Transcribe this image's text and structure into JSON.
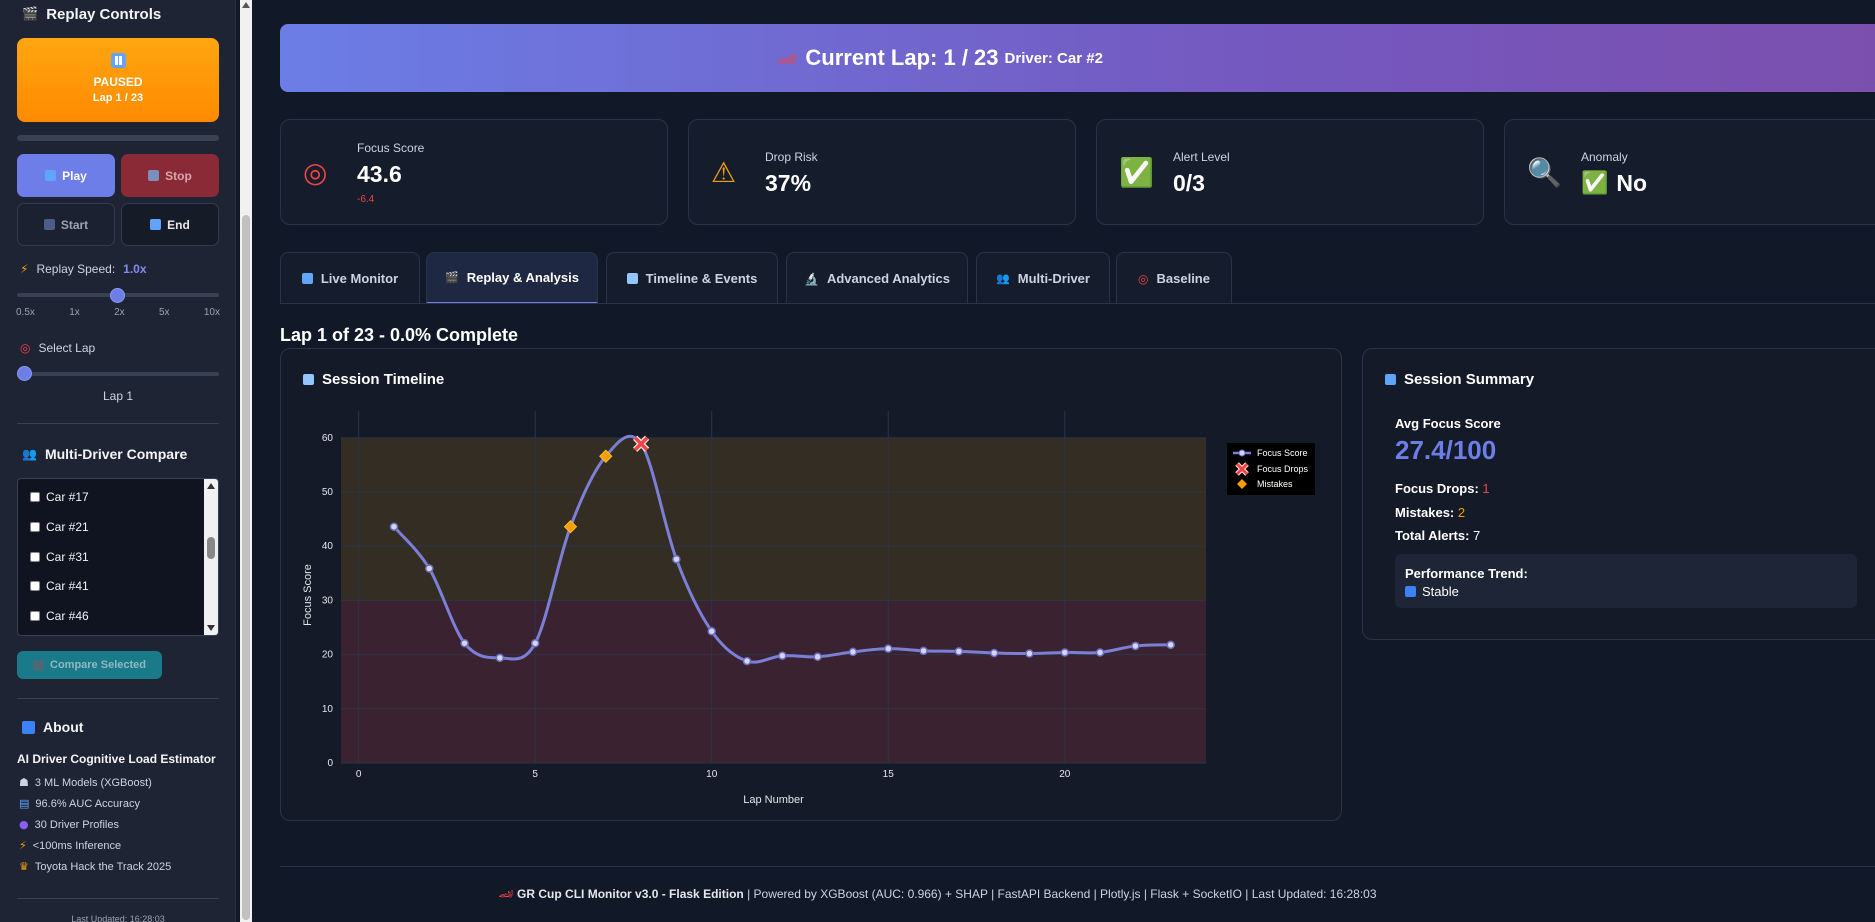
{
  "sidebar": {
    "replay_title": "Replay Controls",
    "status": {
      "label": "PAUSED",
      "lap": "Lap 1 / 23"
    },
    "buttons": {
      "play": "Play",
      "stop": "Stop",
      "start": "Start",
      "end": "End"
    },
    "speed": {
      "label": "Replay Speed:",
      "value": "1.0x",
      "ticks": [
        "0.5x",
        "1x",
        "2x",
        "5x",
        "10x"
      ]
    },
    "select_lap": {
      "label": "Select Lap",
      "value": "Lap 1"
    },
    "compare": {
      "title": "Multi-Driver Compare",
      "cars": [
        "Car #17",
        "Car #21",
        "Car #31",
        "Car #41",
        "Car #46"
      ],
      "button": "Compare Selected"
    },
    "about": {
      "title": "About",
      "subtitle": "AI Driver Cognitive Load Estimator",
      "items": [
        {
          "icon": "brain-icon",
          "text": "3 ML Models (XGBoost)"
        },
        {
          "icon": "chart-icon",
          "text": "96.6% AUC Accuracy"
        },
        {
          "icon": "people-icon",
          "text": "30 Driver Profiles"
        },
        {
          "icon": "lightning-icon",
          "text": "<100ms Inference"
        },
        {
          "icon": "trophy-icon",
          "text": "Toyota Hack the Track 2025"
        }
      ],
      "updated": "Last Updated: 16:28:03"
    }
  },
  "header": {
    "title": "Current Lap: 1 / 23",
    "driver": "Driver: Car #2"
  },
  "metrics": {
    "focus": {
      "label": "Focus Score",
      "value": "43.6",
      "delta": "-6.4"
    },
    "drop": {
      "label": "Drop Risk",
      "value": "37%"
    },
    "alert": {
      "label": "Alert Level",
      "value": "0/3"
    },
    "anomaly": {
      "label": "Anomaly",
      "value": "No"
    }
  },
  "tabs": [
    "Live Monitor",
    "Replay & Analysis",
    "Timeline & Events",
    "Advanced Analytics",
    "Multi-Driver",
    "Baseline"
  ],
  "progress_title": "Lap 1 of 23 - 0.0% Complete",
  "timeline": {
    "title": "Session Timeline"
  },
  "chart_data": {
    "type": "line",
    "xlabel": "Lap Number",
    "ylabel": "Focus Score",
    "xlim": [
      -0.5,
      24
    ],
    "ylim": [
      0,
      62
    ],
    "xticks": [
      0,
      5,
      10,
      15,
      20
    ],
    "yticks": [
      0,
      10,
      20,
      30,
      40,
      50,
      60
    ],
    "bands": [
      {
        "from": 0,
        "to": 30,
        "color": "#3a2230"
      },
      {
        "from": 30,
        "to": 60,
        "color": "#332d24"
      }
    ],
    "legend": [
      "Focus Score",
      "Focus Drops",
      "Mistakes"
    ],
    "legend_position": "top-right",
    "x": [
      1,
      2,
      3,
      4,
      5,
      6,
      7,
      8,
      9,
      10,
      11,
      12,
      13,
      14,
      15,
      16,
      17,
      18,
      19,
      20,
      21,
      22,
      23
    ],
    "series": [
      {
        "name": "Focus Score",
        "color": "#7b7fd6",
        "values": [
          43.6,
          35.9,
          22.1,
          19.4,
          22.1,
          43.6,
          56.6,
          58.9,
          37.6,
          24.3,
          18.8,
          19.8,
          19.6,
          20.5,
          21.1,
          20.7,
          20.6,
          20.3,
          20.2,
          20.4,
          20.4,
          21.6,
          21.8
        ]
      }
    ],
    "focus_drops": [
      {
        "x": 8,
        "y": 58.9
      }
    ],
    "mistakes": [
      {
        "x": 6,
        "y": 43.6
      },
      {
        "x": 7,
        "y": 56.6
      }
    ]
  },
  "summary": {
    "title": "Session Summary",
    "avg_label": "Avg Focus Score",
    "avg_value": "27.4/100",
    "drops_label": "Focus Drops:",
    "drops_value": "1",
    "mistakes_label": "Mistakes:",
    "mistakes_value": "2",
    "alerts_label": "Total Alerts:",
    "alerts_value": "7",
    "trend_label": "Performance Trend:",
    "trend_value": "Stable"
  },
  "footer": {
    "brand": "GR Cup CLI Monitor v3.0 - Flask Edition",
    "rest": " | Powered by XGBoost (AUC: 0.966) + SHAP | FastAPI Backend | Plotly.js | Flask + SocketIO | Last Updated: 16:28:03"
  }
}
